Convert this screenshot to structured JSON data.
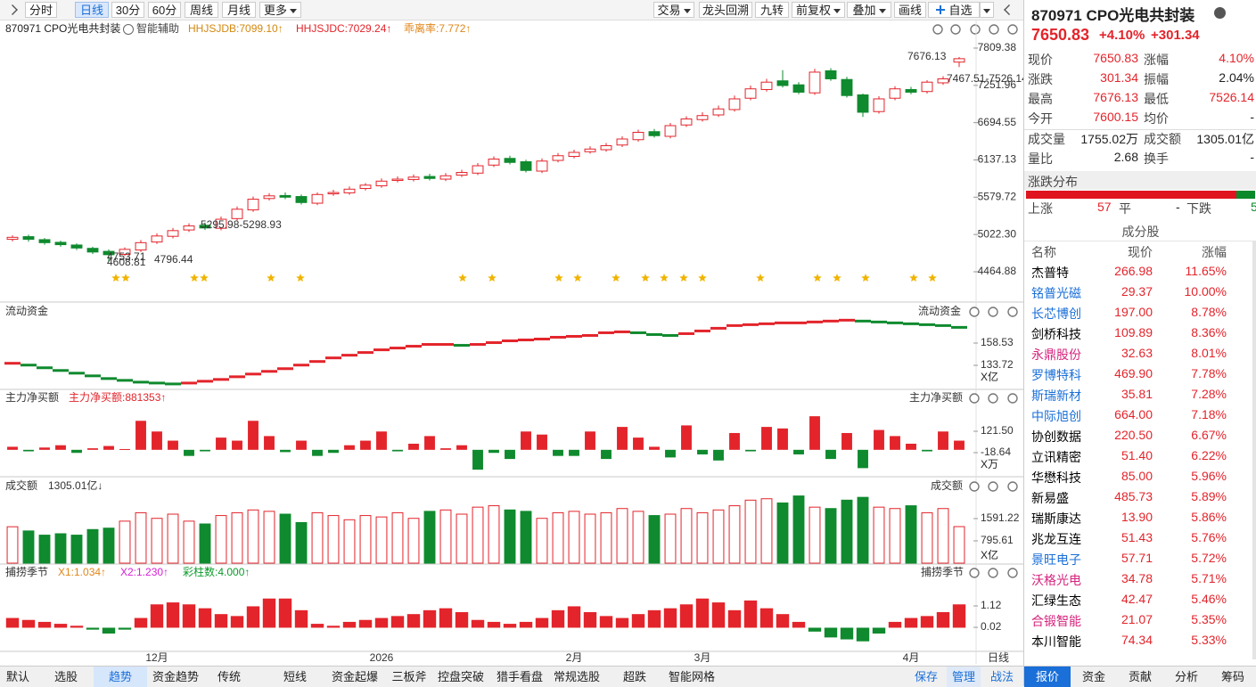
{
  "toolbar": {
    "left": [
      "分时",
      "日线",
      "30分",
      "60分",
      "周线",
      "月线",
      "更多"
    ],
    "right": [
      "交易",
      "龙头回溯",
      "九转",
      "前复权",
      "叠加",
      "画线",
      "自选"
    ]
  },
  "chart_header": {
    "symbol": "870971 CPO光电共封装",
    "assist": "智能辅助",
    "indicators": [
      "HHJSJDB:7099.10↑",
      "HHJSJDC:7029.24↑",
      "乖离率:7.772↑"
    ]
  },
  "main_chart": {
    "type": "candlestick",
    "open": [
      4950,
      4990,
      4945,
      4905,
      4865,
      4815,
      4770,
      4725,
      4790,
      4910,
      4995,
      5090,
      5160,
      5115,
      5260,
      5390,
      5560,
      5605,
      5590,
      5490,
      5630,
      5645,
      5710,
      5750,
      5830,
      5845,
      5890,
      5850,
      5910,
      5940,
      6060,
      6160,
      6110,
      5970,
      6130,
      6190,
      6260,
      6290,
      6360,
      6440,
      6560,
      6490,
      6660,
      6740,
      6810,
      6890,
      7060,
      7190,
      7320,
      7260,
      7140,
      7470,
      7340,
      7110,
      6860,
      7060,
      7190,
      7160,
      7290,
      7600.15
    ],
    "high": [
      5010,
      5020,
      4970,
      4930,
      4890,
      4840,
      4800,
      4830,
      4940,
      5040,
      5120,
      5190,
      5200,
      5290,
      5440,
      5590,
      5640,
      5650,
      5620,
      5650,
      5690,
      5740,
      5790,
      5860,
      5890,
      5920,
      5930,
      5940,
      5990,
      6090,
      6190,
      6200,
      6140,
      6160,
      6240,
      6290,
      6340,
      6390,
      6490,
      6590,
      6600,
      6690,
      6790,
      6850,
      6950,
      7100,
      7250,
      7350,
      7480,
      7300,
      7500,
      7510,
      7380,
      7130,
      7090,
      7240,
      7230,
      7330,
      7390,
      7676.13
    ],
    "low": [
      4920,
      4915,
      4870,
      4840,
      4790,
      4730,
      4608.81,
      4700,
      4760,
      4880,
      4965,
      5060,
      5090,
      5085,
      5230,
      5360,
      5530,
      5550,
      5470,
      5460,
      5600,
      5615,
      5680,
      5720,
      5800,
      5815,
      5830,
      5820,
      5880,
      5910,
      6030,
      6070,
      5950,
      5940,
      6100,
      6160,
      6230,
      6260,
      6330,
      6410,
      6470,
      6460,
      6630,
      6710,
      6780,
      6860,
      7030,
      7160,
      7220,
      7120,
      7110,
      7320,
      7070,
      6780,
      6830,
      7030,
      7120,
      7130,
      7260,
      7526.14
    ],
    "close": [
      4980,
      4950,
      4900,
      4870,
      4820,
      4760,
      4720,
      4800,
      4900,
      5000,
      5080,
      5150,
      5120,
      5250,
      5400,
      5550,
      5600,
      5580,
      5500,
      5620,
      5650,
      5700,
      5760,
      5820,
      5850,
      5880,
      5860,
      5900,
      5950,
      6050,
      6150,
      6100,
      5980,
      6120,
      6200,
      6250,
      6300,
      6350,
      6450,
      6550,
      6500,
      6650,
      6750,
      6800,
      6900,
      7050,
      7200,
      7300,
      7250,
      7150,
      7450,
      7350,
      7100,
      6850,
      7050,
      7200,
      7150,
      7300,
      7349.49,
      7650.83
    ],
    "categories": [
      null,
      null,
      null,
      null,
      null,
      null,
      null,
      null,
      null,
      "12月",
      null,
      null,
      null,
      null,
      null,
      null,
      null,
      null,
      null,
      null,
      null,
      null,
      null,
      "2026",
      null,
      null,
      null,
      null,
      null,
      null,
      null,
      null,
      null,
      null,
      null,
      "2月",
      null,
      null,
      null,
      null,
      null,
      null,
      null,
      "3月",
      null,
      null,
      null,
      null,
      null,
      null,
      null,
      null,
      null,
      null,
      null,
      null,
      "4月",
      null,
      null,
      null
    ],
    "ylim": [
      4065,
      7929
    ],
    "yticks": [
      4464.88,
      {
        "value": 5022.3,
        "label": "5022.30"
      },
      5579.72,
      6137.13,
      6694.55,
      7251.96,
      7809.38
    ],
    "annotations": [
      "7676.13",
      "7467.51-7526.14",
      "5295.98-5298.93",
      "4753.71",
      "4796.44",
      "4608.81"
    ],
    "period_label": "日线"
  },
  "panels": [
    {
      "type": "step",
      "title": "流动资金",
      "values": [
        136,
        134,
        131,
        128,
        125,
        122,
        119,
        117,
        115,
        114,
        113,
        114,
        116,
        118,
        121,
        124,
        127,
        130,
        134,
        138,
        142,
        145,
        148,
        151,
        153,
        155,
        157,
        157,
        156,
        157,
        159,
        161,
        162,
        163,
        165,
        166,
        167,
        170,
        171,
        170,
        168,
        167,
        169,
        172,
        175,
        178,
        179,
        180,
        181,
        181,
        182,
        183,
        184,
        183,
        182,
        181,
        180,
        179,
        178,
        176
      ],
      "ylim": [
        111.9,
        188.3
      ],
      "yticks": [
        133.72,
        158.53
      ],
      "unit": "X亿"
    },
    {
      "type": "bar",
      "title": "主力净买额",
      "readout": "主力净买额:881353↑",
      "values": [
        20,
        -10,
        15,
        30,
        -20,
        10,
        25,
        5,
        190,
        120,
        60,
        -40,
        -10,
        80,
        60,
        190,
        90,
        -15,
        60,
        -40,
        -20,
        30,
        60,
        120,
        -10,
        40,
        90,
        10,
        30,
        -130,
        -20,
        -60,
        120,
        100,
        -40,
        -40,
        120,
        -60,
        150,
        80,
        20,
        -50,
        160,
        -30,
        -70,
        110,
        -10,
        150,
        140,
        -30,
        220,
        -60,
        110,
        -120,
        130,
        90,
        40,
        -10,
        120,
        60
      ],
      "ylim": [
        -147,
        290.8
      ],
      "yticks": [
        -18.64,
        {
          "value": 121.5,
          "label": "121.50"
        }
      ],
      "unit": "X万"
    },
    {
      "type": "volume",
      "title": "成交额",
      "readout": "1305.01亿↓",
      "values": [
        1300,
        1150,
        1000,
        1050,
        1000,
        1200,
        1250,
        1500,
        1800,
        1600,
        1750,
        1500,
        1400,
        1700,
        1800,
        1900,
        1850,
        1750,
        1450,
        1800,
        1700,
        1550,
        1700,
        1650,
        1800,
        1600,
        1850,
        1900,
        1750,
        2000,
        2050,
        1900,
        1850,
        1600,
        1800,
        1850,
        1750,
        1800,
        1950,
        1850,
        1700,
        1750,
        1950,
        1800,
        1900,
        2050,
        2250,
        2300,
        2150,
        2400,
        2000,
        1950,
        2250,
        2350,
        2000,
        1950,
        2050,
        1800,
        1950,
        1305.01
      ],
      "ylim": [
        0,
        2546
      ],
      "yticks": [
        795.61,
        1591.22
      ],
      "unit": "X亿"
    },
    {
      "type": "histogram",
      "title": "捕捞季节",
      "readouts": [
        "X1:1.034↑",
        "X2:1.230↑",
        "彩柱数:4.000↑"
      ],
      "values": [
        0.5,
        0.4,
        0.3,
        0.2,
        0.1,
        -0.1,
        -0.3,
        -0.1,
        0.5,
        1.2,
        1.3,
        1.2,
        1.0,
        0.7,
        0.6,
        1.1,
        1.5,
        1.5,
        0.9,
        0.2,
        0.1,
        0.3,
        0.4,
        0.5,
        0.6,
        0.7,
        0.9,
        1.0,
        0.8,
        0.4,
        0.3,
        0.2,
        0.3,
        0.5,
        0.9,
        1.1,
        0.8,
        0.6,
        0.5,
        0.7,
        0.9,
        1.0,
        1.2,
        1.5,
        1.3,
        0.9,
        1.4,
        1.0,
        0.7,
        0.3,
        -0.2,
        -0.5,
        -0.6,
        -0.7,
        -0.3,
        0.3,
        0.5,
        0.6,
        0.8,
        1.2
      ],
      "ylim": [
        -1.17,
        2.495
      ],
      "yticks": [
        0.02,
        1.12
      ]
    }
  ],
  "bottom_tabs": {
    "left": [
      "默认",
      "选股",
      "趋势",
      "资金趋势",
      "传统",
      "短线",
      "资金起爆",
      "三板斧",
      "控盘突破",
      "猎手看盘",
      "常规选股",
      "超跌",
      "智能网格"
    ],
    "right": [
      "保存",
      "管理",
      "战法"
    ]
  },
  "quote": {
    "title": "870971 CPO光电共封装",
    "price": "7650.83",
    "change_pct": "+4.10%",
    "change": "+301.34",
    "fields": [
      [
        "现价",
        "7650.83",
        "涨幅",
        "4.10%"
      ],
      [
        "涨跌",
        "301.34",
        "振幅",
        "2.04%"
      ],
      [
        "最高",
        "7676.13",
        "最低",
        "7526.14"
      ],
      [
        "今开",
        "7600.15",
        "均价",
        "-"
      ],
      [
        "成交量",
        "1755.02万",
        "成交额",
        "1305.01亿"
      ],
      [
        "量比",
        "2.68",
        "换手",
        "-"
      ]
    ],
    "distribution": {
      "title": "涨跌分布",
      "up_label": "上涨",
      "up": 57,
      "flat_label": "平",
      "flat": "-",
      "down_label": "下跌",
      "down": 5
    },
    "constituents": {
      "title": "成分股",
      "columns": [
        "名称",
        "现价",
        "涨幅"
      ],
      "rows": [
        {
          "name": "杰普特",
          "price": "266.98",
          "pct": "11.65%",
          "color": "#000000"
        },
        {
          "name": "铭普光磁",
          "price": "29.37",
          "pct": "10.00%",
          "color": "#1a6fd8"
        },
        {
          "name": "长芯博创",
          "price": "197.00",
          "pct": "8.78%",
          "color": "#1a6fd8"
        },
        {
          "name": "剑桥科技",
          "price": "109.89",
          "pct": "8.36%",
          "color": "#000000"
        },
        {
          "name": "永鼎股份",
          "price": "32.63",
          "pct": "8.01%",
          "color": "#d6247e"
        },
        {
          "name": "罗博特科",
          "price": "469.90",
          "pct": "7.78%",
          "color": "#1a6fd8"
        },
        {
          "name": "斯瑞新材",
          "price": "35.81",
          "pct": "7.28%",
          "color": "#1a6fd8"
        },
        {
          "name": "中际旭创",
          "price": "664.00",
          "pct": "7.18%",
          "color": "#1a6fd8"
        },
        {
          "name": "协创数据",
          "price": "220.50",
          "pct": "6.67%",
          "color": "#000000"
        },
        {
          "name": "立讯精密",
          "price": "51.40",
          "pct": "6.22%",
          "color": "#000000"
        },
        {
          "name": "华懋科技",
          "price": "85.00",
          "pct": "5.96%",
          "color": "#000000"
        },
        {
          "name": "新易盛",
          "price": "485.73",
          "pct": "5.89%",
          "color": "#000000"
        },
        {
          "name": "瑞斯康达",
          "price": "13.90",
          "pct": "5.86%",
          "color": "#000000"
        },
        {
          "name": "兆龙互连",
          "price": "51.43",
          "pct": "5.76%",
          "color": "#000000"
        },
        {
          "name": "景旺电子",
          "price": "57.71",
          "pct": "5.72%",
          "color": "#1a6fd8"
        },
        {
          "name": "沃格光电",
          "price": "34.78",
          "pct": "5.71%",
          "color": "#d6247e"
        },
        {
          "name": "汇绿生态",
          "price": "42.47",
          "pct": "5.46%",
          "color": "#000000"
        },
        {
          "name": "合锻智能",
          "price": "21.07",
          "pct": "5.35%",
          "color": "#d6247e"
        },
        {
          "name": "本川智能",
          "price": "74.34",
          "pct": "5.33%",
          "color": "#000000"
        }
      ]
    },
    "tabs": [
      "报价",
      "资金",
      "贡献",
      "分析",
      "筹码"
    ]
  }
}
